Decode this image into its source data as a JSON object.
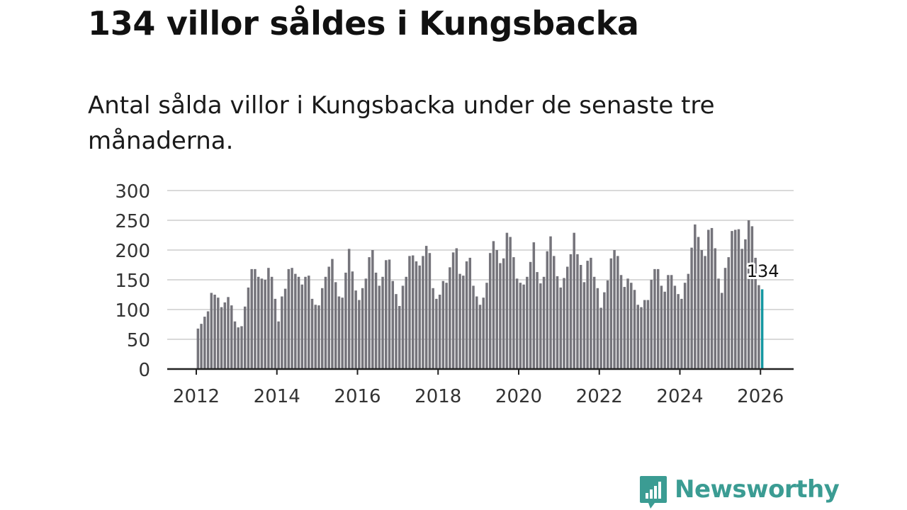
{
  "title": "134 villor såldes i Kungsbacka",
  "subtitle": "Antal sålda villor i Kungsbacka under de senaste tre månaderna.",
  "brand": {
    "name": "Newsworthy",
    "color": "#3b9c93",
    "logo_icon": "bar-chart-speech-bubble-icon"
  },
  "colors": {
    "bar": "#75747b",
    "highlight": "#1597a1",
    "grid": "#d9d9d9",
    "axis": "#222222"
  },
  "chart_data": {
    "type": "bar",
    "title": "134 villor såldes i Kungsbacka",
    "xlabel": "",
    "ylabel": "",
    "ylim": [
      0,
      300
    ],
    "yticks": [
      "0",
      "50",
      "100",
      "150",
      "200",
      "250",
      "300"
    ],
    "xticks": [
      "2012",
      "2014",
      "2016",
      "2018",
      "2020",
      "2022",
      "2024",
      "2026"
    ],
    "start_year": 2012,
    "start_month": 1,
    "highlight_label": "134",
    "series": [
      {
        "name": "Antal sålda villor",
        "values": [
          68,
          76,
          88,
          97,
          128,
          125,
          120,
          104,
          112,
          121,
          107,
          80,
          70,
          72,
          105,
          137,
          168,
          168,
          155,
          152,
          150,
          170,
          155,
          118,
          80,
          122,
          135,
          168,
          170,
          160,
          155,
          142,
          155,
          157,
          118,
          108,
          107,
          136,
          155,
          172,
          185,
          146,
          122,
          120,
          162,
          202,
          164,
          132,
          116,
          136,
          152,
          188,
          200,
          162,
          140,
          155,
          183,
          184,
          148,
          126,
          106,
          140,
          155,
          190,
          191,
          181,
          174,
          190,
          207,
          195,
          136,
          118,
          125,
          148,
          145,
          171,
          196,
          203,
          160,
          157,
          181,
          187,
          140,
          122,
          108,
          120,
          145,
          195,
          215,
          200,
          178,
          186,
          229,
          222,
          188,
          152,
          145,
          142,
          155,
          180,
          213,
          163,
          144,
          155,
          198,
          223,
          190,
          156,
          137,
          153,
          172,
          193,
          229,
          193,
          175,
          146,
          182,
          187,
          155,
          136,
          103,
          129,
          149,
          186,
          200,
          190,
          158,
          138,
          152,
          145,
          133,
          108,
          104,
          116,
          116,
          150,
          168,
          168,
          140,
          130,
          158,
          158,
          140,
          126,
          118,
          145,
          160,
          204,
          243,
          222,
          200,
          190,
          234,
          237,
          203,
          152,
          128,
          170,
          188,
          232,
          234,
          235,
          202,
          218,
          250,
          240,
          187,
          141,
          134
        ]
      }
    ]
  }
}
